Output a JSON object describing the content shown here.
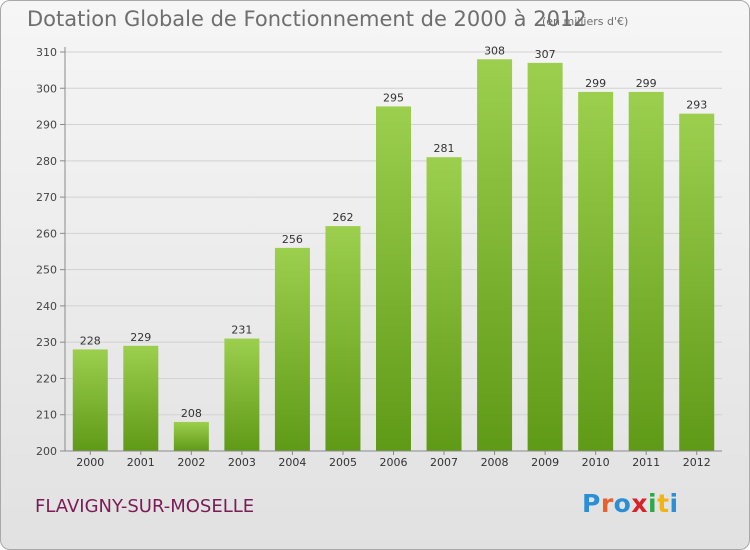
{
  "header": {
    "title": "Dotation Globale de Fonctionnement de 2000 à 2012",
    "unit": "(en milliers d'€)"
  },
  "footer": {
    "commune": "FLAVIGNY-SUR-MOSELLE",
    "logo_text": "Proxiti",
    "logo_colors": [
      "#2a8fd6",
      "#e8602c",
      "#2a8fd6",
      "#d6232a",
      "#2ca84a",
      "#f2b315",
      "#2a8fd6"
    ]
  },
  "chart_data": {
    "type": "bar",
    "categories": [
      "2000",
      "2001",
      "2002",
      "2003",
      "2004",
      "2005",
      "2006",
      "2007",
      "2008",
      "2009",
      "2010",
      "2011",
      "2012"
    ],
    "values": [
      228,
      229,
      208,
      231,
      256,
      262,
      295,
      281,
      308,
      307,
      299,
      299,
      293
    ],
    "ylim": [
      200,
      310
    ],
    "yticks": [
      200,
      210,
      220,
      230,
      240,
      250,
      260,
      270,
      280,
      290,
      300,
      310
    ],
    "grid": true,
    "data_labels": true,
    "colors": {
      "bar_top": "#9ccf4e",
      "bar_bottom": "#5f9a17",
      "grid": "#d2d2d2",
      "axis": "#8a8a8a"
    }
  }
}
